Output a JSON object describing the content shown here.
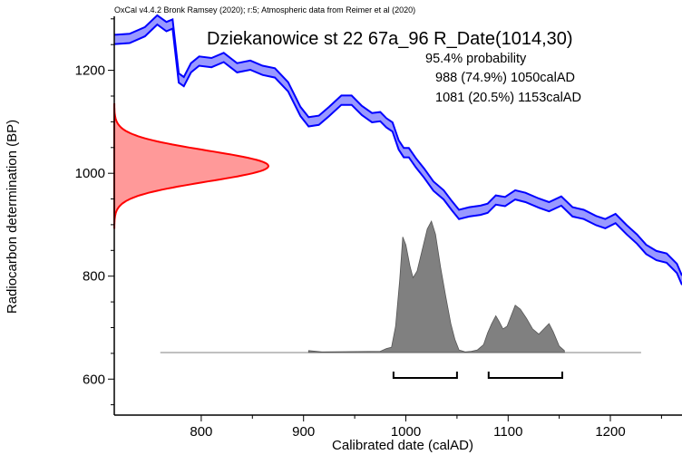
{
  "header_note": "OxCal v4.4.2 Bronk Ramsey (2020); r:5; Atmospheric data from Reimer et al (2020)",
  "sample_title": "Dziekanowice st 22 67a_96 R_Date(1014,30)",
  "probability": {
    "heading": "95.4% probability",
    "ranges": [
      {
        "text": "988 (74.9%) 1050calAD",
        "from": 988,
        "to": 1050
      },
      {
        "text": "1081 (20.5%) 1153calAD",
        "from": 1081,
        "to": 1153
      }
    ]
  },
  "chart_data": {
    "type": "area",
    "xlabel": "Calibrated date (calAD)",
    "ylabel": "Radiocarbon determination (BP)",
    "xlim": [
      715,
      1270
    ],
    "ylim": [
      530,
      1305
    ],
    "x_ticks": [
      800,
      900,
      1000,
      1100,
      1200
    ],
    "y_ticks": [
      600,
      800,
      1000,
      1200
    ],
    "radiocarbon_date": {
      "mean_bp": 1014,
      "sd": 30
    },
    "calibration_curve": {
      "color": "#0000ff",
      "fill": "#9999ff",
      "points": [
        [
          715,
          1260
        ],
        [
          730,
          1262
        ],
        [
          745,
          1275
        ],
        [
          757,
          1298
        ],
        [
          766,
          1285
        ],
        [
          772,
          1290
        ],
        [
          778,
          1185
        ],
        [
          783,
          1178
        ],
        [
          790,
          1205
        ],
        [
          798,
          1218
        ],
        [
          810,
          1215
        ],
        [
          822,
          1225
        ],
        [
          835,
          1205
        ],
        [
          848,
          1210
        ],
        [
          860,
          1200
        ],
        [
          872,
          1195
        ],
        [
          885,
          1168
        ],
        [
          897,
          1120
        ],
        [
          905,
          1100
        ],
        [
          915,
          1103
        ],
        [
          925,
          1120
        ],
        [
          937,
          1142
        ],
        [
          947,
          1142
        ],
        [
          957,
          1122
        ],
        [
          967,
          1108
        ],
        [
          975,
          1110
        ],
        [
          981,
          1098
        ],
        [
          987,
          1090
        ],
        [
          993,
          1055
        ],
        [
          998,
          1040
        ],
        [
          1003,
          1040
        ],
        [
          1010,
          1020
        ],
        [
          1018,
          1000
        ],
        [
          1027,
          975
        ],
        [
          1037,
          958
        ],
        [
          1045,
          937
        ],
        [
          1052,
          920
        ],
        [
          1062,
          925
        ],
        [
          1073,
          928
        ],
        [
          1080,
          932
        ],
        [
          1088,
          948
        ],
        [
          1097,
          945
        ],
        [
          1107,
          958
        ],
        [
          1117,
          953
        ],
        [
          1130,
          942
        ],
        [
          1140,
          935
        ],
        [
          1152,
          946
        ],
        [
          1163,
          925
        ],
        [
          1174,
          920
        ],
        [
          1186,
          908
        ],
        [
          1195,
          902
        ],
        [
          1205,
          912
        ],
        [
          1216,
          890
        ],
        [
          1226,
          872
        ],
        [
          1235,
          852
        ],
        [
          1245,
          840
        ],
        [
          1255,
          835
        ],
        [
          1265,
          815
        ],
        [
          1270,
          792
        ]
      ]
    },
    "measurement_distribution": {
      "color": "#ff0000",
      "fill": "#ff9999"
    },
    "posterior_distribution": {
      "color": "#808080",
      "baseline_range": [
        760,
        1230
      ],
      "points": [
        [
          905,
          0.015
        ],
        [
          918,
          0.005
        ],
        [
          975,
          0.01
        ],
        [
          981,
          0.03
        ],
        [
          986,
          0.04
        ],
        [
          990,
          0.2
        ],
        [
          994,
          0.55
        ],
        [
          997,
          0.88
        ],
        [
          1000,
          0.82
        ],
        [
          1004,
          0.66
        ],
        [
          1007,
          0.57
        ],
        [
          1011,
          0.62
        ],
        [
          1016,
          0.78
        ],
        [
          1021,
          0.94
        ],
        [
          1025,
          1.0
        ],
        [
          1029,
          0.9
        ],
        [
          1034,
          0.65
        ],
        [
          1039,
          0.43
        ],
        [
          1044,
          0.22
        ],
        [
          1048,
          0.1
        ],
        [
          1052,
          0.02
        ],
        [
          1058,
          0.005
        ],
        [
          1064,
          0.01
        ],
        [
          1070,
          0.02
        ],
        [
          1076,
          0.06
        ],
        [
          1080,
          0.15
        ],
        [
          1084,
          0.22
        ],
        [
          1088,
          0.28
        ],
        [
          1091,
          0.24
        ],
        [
          1095,
          0.18
        ],
        [
          1099,
          0.2
        ],
        [
          1103,
          0.28
        ],
        [
          1107,
          0.36
        ],
        [
          1112,
          0.33
        ],
        [
          1118,
          0.26
        ],
        [
          1124,
          0.18
        ],
        [
          1130,
          0.14
        ],
        [
          1135,
          0.18
        ],
        [
          1140,
          0.22
        ],
        [
          1144,
          0.16
        ],
        [
          1150,
          0.05
        ],
        [
          1155,
          0.015
        ]
      ]
    }
  }
}
